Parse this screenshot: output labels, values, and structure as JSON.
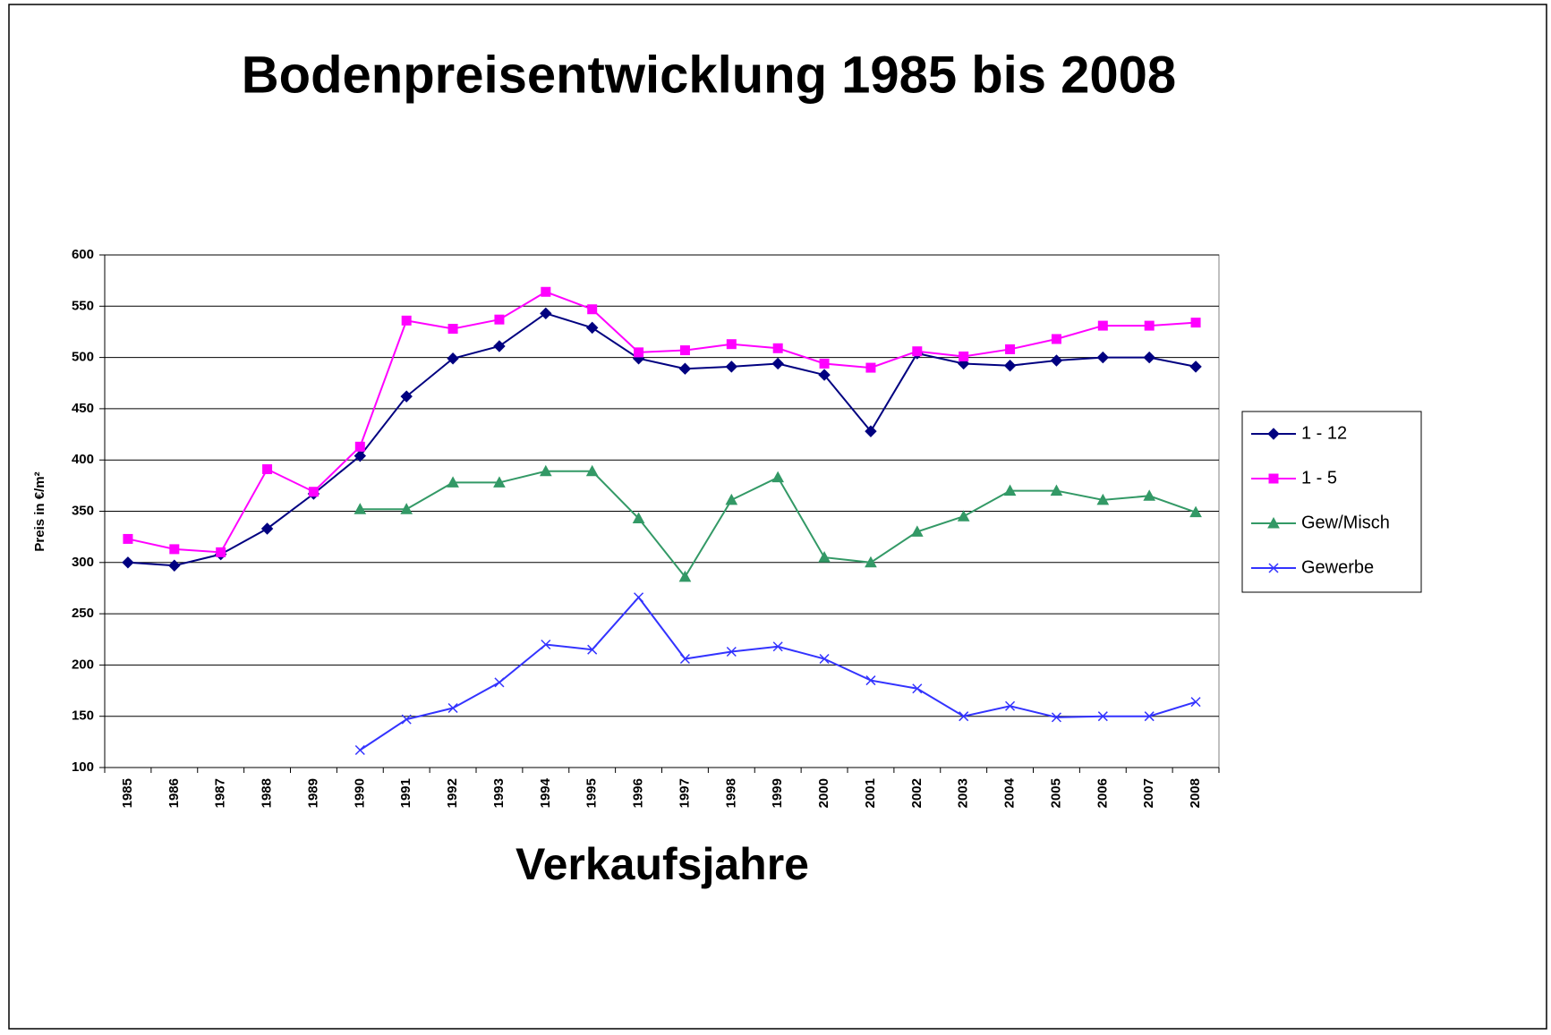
{
  "chart_data": {
    "type": "line",
    "title": "Bodenpreisentwicklung 1985 bis 2008",
    "x_label": "Verkaufsjahre",
    "y_label": "Preis in €/m²",
    "categories": [
      "1985",
      "1986",
      "1987",
      "1988",
      "1989",
      "1990",
      "1991",
      "1992",
      "1993",
      "1994",
      "1995",
      "1996",
      "1997",
      "1998",
      "1999",
      "2000",
      "2001",
      "2002",
      "2003",
      "2004",
      "2005",
      "2006",
      "2007",
      "2008"
    ],
    "series": [
      {
        "name": "1 - 12",
        "color": "#000080",
        "marker": "diamond",
        "values": [
          300,
          297,
          308,
          333,
          367,
          404,
          462,
          499,
          511,
          543,
          529,
          499,
          489,
          491,
          494,
          483,
          428,
          504,
          494,
          492,
          497,
          500,
          500,
          491
        ]
      },
      {
        "name": "1 - 5",
        "color": "#ff00ff",
        "marker": "square",
        "values": [
          323,
          313,
          310,
          391,
          369,
          413,
          536,
          528,
          537,
          564,
          547,
          505,
          507,
          513,
          509,
          494,
          490,
          506,
          501,
          508,
          518,
          531,
          531,
          534
        ]
      },
      {
        "name": "Gew/Misch",
        "color": "#339966",
        "marker": "triangle",
        "values": [
          null,
          null,
          null,
          null,
          null,
          352,
          352,
          378,
          378,
          389,
          389,
          343,
          286,
          361,
          383,
          305,
          300,
          330,
          345,
          370,
          370,
          361,
          365,
          349
        ]
      },
      {
        "name": "Gewerbe",
        "color": "#3333ff",
        "marker": "x",
        "values": [
          null,
          null,
          null,
          null,
          null,
          117,
          147,
          158,
          183,
          220,
          215,
          266,
          206,
          213,
          218,
          206,
          185,
          177,
          150,
          160,
          149,
          150,
          150,
          164
        ]
      }
    ],
    "ylim": [
      100,
      600
    ],
    "yticks": [
      100,
      150,
      200,
      250,
      300,
      350,
      400,
      450,
      500,
      550,
      600
    ],
    "grid": true,
    "legend": "right"
  }
}
